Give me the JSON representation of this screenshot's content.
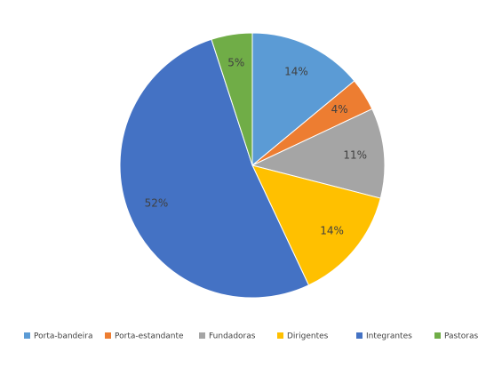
{
  "chart_data": {
    "type": "pie",
    "categories": [
      "Porta-bandeira",
      "Porta-estandante",
      "Fundadoras",
      "Dirigentes",
      "Integrantes",
      "Pastoras"
    ],
    "values": [
      14,
      4,
      11,
      14,
      52,
      5
    ],
    "value_labels": [
      "14%",
      "4%",
      "11%",
      "14%",
      "52%",
      "5%"
    ],
    "colors": [
      "#5b9bd5",
      "#ed7d31",
      "#a5a5a5",
      "#ffc000",
      "#4472c4",
      "#70ad47"
    ],
    "legend": "bottom"
  }
}
